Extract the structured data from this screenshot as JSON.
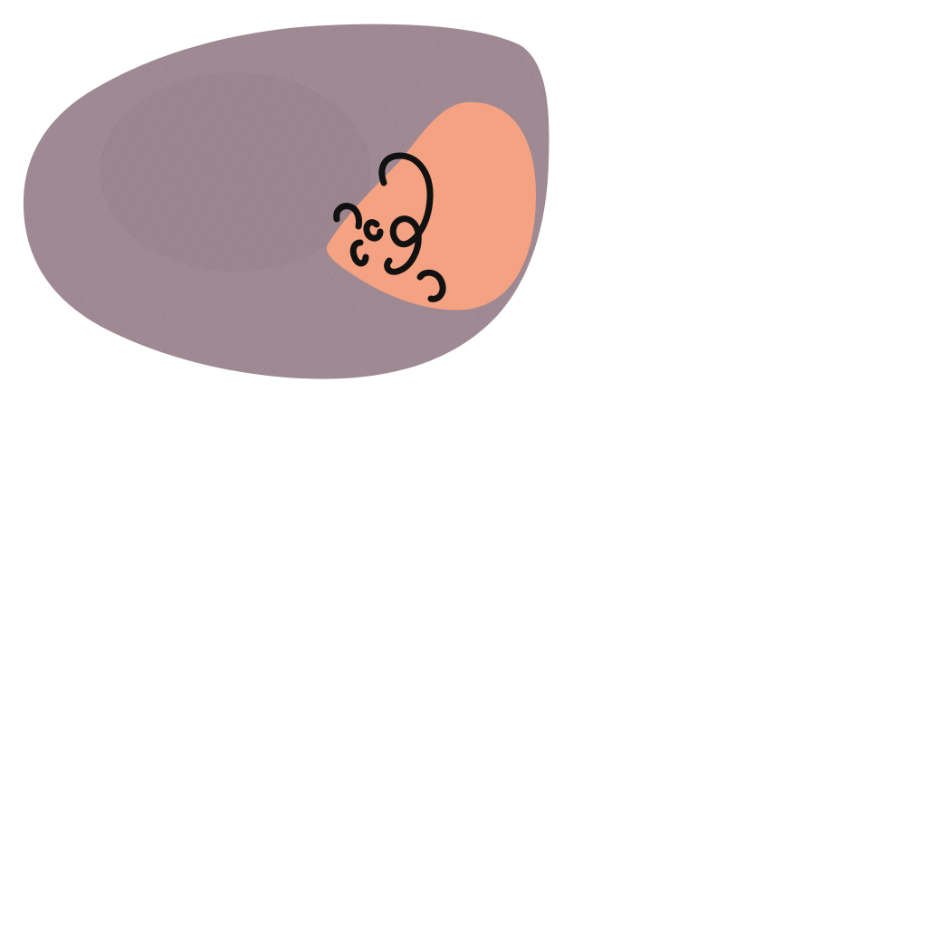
{
  "image": {
    "background_color": "#ffffff",
    "shapes": {
      "blob": {
        "name": "mauve-blob",
        "color": "#9f8a94",
        "texture": "crosshatch"
      },
      "patch": {
        "name": "peach-patch",
        "color": "#f4a281"
      },
      "squiggles": {
        "name": "black-squiggles",
        "color": "#111111"
      }
    }
  }
}
